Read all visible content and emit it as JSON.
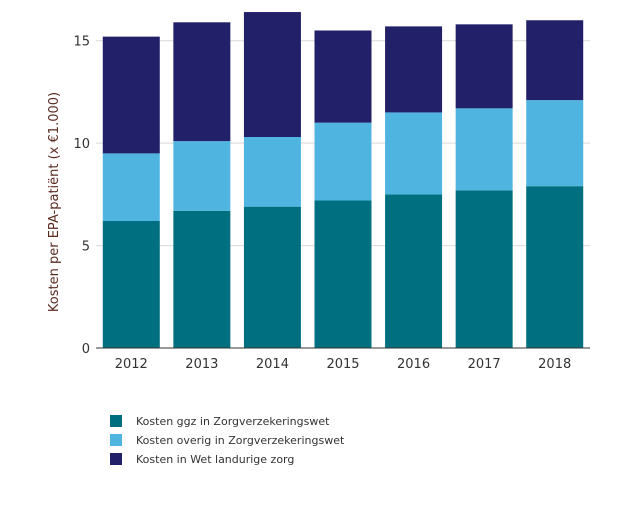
{
  "chart_data": {
    "type": "bar",
    "stacked": true,
    "categories": [
      "2012",
      "2013",
      "2014",
      "2015",
      "2016",
      "2017",
      "2018"
    ],
    "series": [
      {
        "name": "Kosten ggz in Zorgverzekeringswet",
        "color": "#007080",
        "values": [
          6.2,
          6.7,
          6.9,
          7.2,
          7.5,
          7.7,
          7.9
        ]
      },
      {
        "name": "Kosten overig in Zorgverzekeringswet",
        "color": "#4fb5e0",
        "values": [
          3.3,
          3.4,
          3.4,
          3.8,
          4.0,
          4.0,
          4.2
        ]
      },
      {
        "name": "Kosten in Wet landurige zorg",
        "color": "#23206a",
        "values": [
          5.7,
          5.8,
          6.1,
          4.5,
          4.2,
          4.1,
          3.9
        ]
      }
    ],
    "title": "",
    "xlabel": "",
    "ylabel": "Kosten per EPA-patiënt (x €1.000)",
    "ylim": [
      0,
      16.5
    ],
    "yticks": [
      0,
      5,
      10,
      15
    ],
    "grid": true,
    "legend_position": "bottom-left"
  }
}
